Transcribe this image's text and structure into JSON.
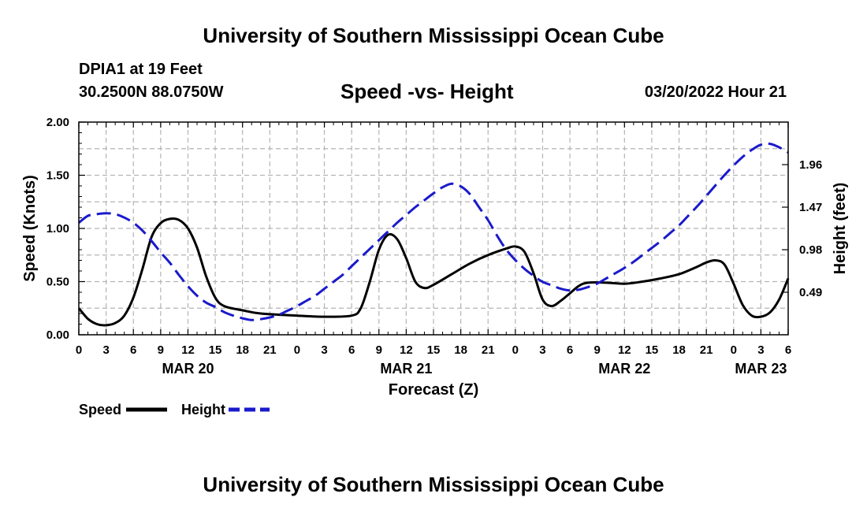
{
  "header": {
    "title": "University of Southern Mississippi Ocean Cube",
    "station": "DPIA1 at 19 Feet",
    "coords": "30.2500N  88.0750W",
    "subtitle": "Speed -vs- Height",
    "datetime": "03/20/2022 Hour 21"
  },
  "footer": {
    "title": "University of Southern Mississippi Ocean Cube"
  },
  "colors": {
    "speed": "#000000",
    "height": "#1a1acc",
    "grid": "#b4b4b4"
  },
  "chart_data": {
    "type": "line",
    "title": "Speed -vs- Height",
    "xlabel": "Forecast (Z)",
    "ylabel_left": "Speed (Knots)",
    "ylabel_right": "Height (feet)",
    "x_range_hours": [
      0,
      78
    ],
    "x_ticks": [
      {
        "h": 0,
        "label": "0"
      },
      {
        "h": 3,
        "label": "3"
      },
      {
        "h": 6,
        "label": "6"
      },
      {
        "h": 9,
        "label": "9"
      },
      {
        "h": 12,
        "label": "12"
      },
      {
        "h": 15,
        "label": "15"
      },
      {
        "h": 18,
        "label": "18"
      },
      {
        "h": 21,
        "label": "21"
      },
      {
        "h": 24,
        "label": "0"
      },
      {
        "h": 27,
        "label": "3"
      },
      {
        "h": 30,
        "label": "6"
      },
      {
        "h": 33,
        "label": "9"
      },
      {
        "h": 36,
        "label": "12"
      },
      {
        "h": 39,
        "label": "15"
      },
      {
        "h": 42,
        "label": "18"
      },
      {
        "h": 45,
        "label": "21"
      },
      {
        "h": 48,
        "label": "0"
      },
      {
        "h": 51,
        "label": "3"
      },
      {
        "h": 54,
        "label": "6"
      },
      {
        "h": 57,
        "label": "9"
      },
      {
        "h": 60,
        "label": "12"
      },
      {
        "h": 63,
        "label": "15"
      },
      {
        "h": 66,
        "label": "18"
      },
      {
        "h": 69,
        "label": "21"
      },
      {
        "h": 72,
        "label": "0"
      },
      {
        "h": 75,
        "label": "3"
      },
      {
        "h": 78,
        "label": "6"
      }
    ],
    "date_labels": [
      {
        "h": 12,
        "label": "MAR 20"
      },
      {
        "h": 36,
        "label": "MAR 21"
      },
      {
        "h": 60,
        "label": "MAR 22"
      },
      {
        "h": 75,
        "label": "MAR 23"
      }
    ],
    "y_left": {
      "range": [
        0,
        2.0
      ],
      "ticks": [
        0.0,
        0.5,
        1.0,
        1.5,
        2.0
      ],
      "tick_labels": [
        "0.00",
        "0.50",
        "1.00",
        "1.50",
        "2.00"
      ]
    },
    "y_right": {
      "range": [
        0,
        2.45
      ],
      "ticks": [
        0.49,
        0.98,
        1.47,
        1.96
      ],
      "tick_labels": [
        "0.49",
        "0.98",
        "1.47",
        "1.96"
      ]
    },
    "series": [
      {
        "name": "Speed",
        "axis": "left",
        "style": "solid",
        "points": [
          [
            0,
            0.25
          ],
          [
            1,
            0.15
          ],
          [
            2,
            0.1
          ],
          [
            3,
            0.09
          ],
          [
            4,
            0.11
          ],
          [
            5,
            0.18
          ],
          [
            6,
            0.35
          ],
          [
            7,
            0.62
          ],
          [
            8,
            0.92
          ],
          [
            9,
            1.05
          ],
          [
            10,
            1.09
          ],
          [
            11,
            1.08
          ],
          [
            12,
            1.0
          ],
          [
            13,
            0.82
          ],
          [
            14,
            0.55
          ],
          [
            15,
            0.35
          ],
          [
            16,
            0.27
          ],
          [
            18,
            0.23
          ],
          [
            20,
            0.2
          ],
          [
            24,
            0.18
          ],
          [
            27,
            0.17
          ],
          [
            30,
            0.18
          ],
          [
            31,
            0.25
          ],
          [
            32,
            0.5
          ],
          [
            33,
            0.8
          ],
          [
            34,
            0.94
          ],
          [
            35,
            0.9
          ],
          [
            36,
            0.72
          ],
          [
            37,
            0.5
          ],
          [
            38,
            0.44
          ],
          [
            39,
            0.47
          ],
          [
            41,
            0.57
          ],
          [
            43,
            0.67
          ],
          [
            45,
            0.75
          ],
          [
            47,
            0.81
          ],
          [
            48,
            0.83
          ],
          [
            49,
            0.78
          ],
          [
            50,
            0.58
          ],
          [
            51,
            0.33
          ],
          [
            52,
            0.27
          ],
          [
            53,
            0.32
          ],
          [
            54,
            0.39
          ],
          [
            55,
            0.46
          ],
          [
            56,
            0.49
          ],
          [
            58,
            0.49
          ],
          [
            60,
            0.48
          ],
          [
            62,
            0.5
          ],
          [
            64,
            0.53
          ],
          [
            66,
            0.57
          ],
          [
            68,
            0.64
          ],
          [
            69,
            0.68
          ],
          [
            70,
            0.7
          ],
          [
            71,
            0.66
          ],
          [
            72,
            0.48
          ],
          [
            73,
            0.28
          ],
          [
            74,
            0.18
          ],
          [
            75,
            0.17
          ],
          [
            76,
            0.21
          ],
          [
            77,
            0.33
          ],
          [
            78,
            0.53
          ]
        ]
      },
      {
        "name": "Height",
        "axis": "right",
        "style": "dashed",
        "points": [
          [
            0,
            1.29
          ],
          [
            1,
            1.37
          ],
          [
            2,
            1.39
          ],
          [
            3,
            1.4
          ],
          [
            4,
            1.39
          ],
          [
            5,
            1.35
          ],
          [
            6,
            1.29
          ],
          [
            7,
            1.2
          ],
          [
            8,
            1.08
          ],
          [
            9,
            0.95
          ],
          [
            10,
            0.83
          ],
          [
            11,
            0.69
          ],
          [
            12,
            0.56
          ],
          [
            13,
            0.45
          ],
          [
            14,
            0.37
          ],
          [
            15,
            0.32
          ],
          [
            16,
            0.26
          ],
          [
            17,
            0.22
          ],
          [
            18,
            0.19
          ],
          [
            19,
            0.17
          ],
          [
            20,
            0.18
          ],
          [
            21,
            0.2
          ],
          [
            22,
            0.23
          ],
          [
            23,
            0.28
          ],
          [
            24,
            0.33
          ],
          [
            25,
            0.39
          ],
          [
            26,
            0.45
          ],
          [
            27,
            0.53
          ],
          [
            28,
            0.61
          ],
          [
            29,
            0.69
          ],
          [
            30,
            0.79
          ],
          [
            31,
            0.89
          ],
          [
            32,
            0.99
          ],
          [
            33,
            1.09
          ],
          [
            34,
            1.19
          ],
          [
            35,
            1.29
          ],
          [
            36,
            1.38
          ],
          [
            37,
            1.47
          ],
          [
            38,
            1.55
          ],
          [
            39,
            1.63
          ],
          [
            40,
            1.7
          ],
          [
            41,
            1.74
          ],
          [
            42,
            1.71
          ],
          [
            43,
            1.62
          ],
          [
            44,
            1.47
          ],
          [
            45,
            1.32
          ],
          [
            46,
            1.14
          ],
          [
            47,
            0.98
          ],
          [
            48,
            0.86
          ],
          [
            49,
            0.76
          ],
          [
            50,
            0.68
          ],
          [
            51,
            0.61
          ],
          [
            52,
            0.57
          ],
          [
            53,
            0.53
          ],
          [
            54,
            0.51
          ],
          [
            55,
            0.52
          ],
          [
            56,
            0.55
          ],
          [
            57,
            0.59
          ],
          [
            58,
            0.65
          ],
          [
            59,
            0.71
          ],
          [
            60,
            0.77
          ],
          [
            61,
            0.84
          ],
          [
            62,
            0.92
          ],
          [
            63,
            1.0
          ],
          [
            64,
            1.08
          ],
          [
            65,
            1.17
          ],
          [
            66,
            1.26
          ],
          [
            67,
            1.37
          ],
          [
            68,
            1.48
          ],
          [
            69,
            1.6
          ],
          [
            70,
            1.72
          ],
          [
            71,
            1.84
          ],
          [
            72,
            1.95
          ],
          [
            73,
            2.05
          ],
          [
            74,
            2.13
          ],
          [
            75,
            2.19
          ],
          [
            76,
            2.2
          ],
          [
            77,
            2.16
          ],
          [
            78,
            2.1
          ]
        ]
      }
    ],
    "legend": [
      {
        "label": "Speed",
        "style": "solid"
      },
      {
        "label": "Height",
        "style": "dashed"
      }
    ],
    "grid": true
  }
}
